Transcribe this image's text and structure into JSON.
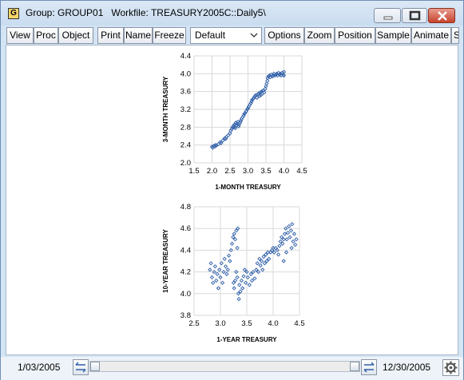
{
  "window": {
    "title": "Group: GROUP01   Workfile: TREASURY2005C::Daily5\\",
    "icon_letter": "G",
    "icons": [
      "group-icon",
      "minimize-icon",
      "maximize-icon",
      "close-icon"
    ]
  },
  "toolbar": {
    "view": "View",
    "proc": "Proc",
    "object": "Object",
    "print": "Print",
    "name": "Name",
    "freeze": "Freeze",
    "display_type": "Default",
    "options": "Options",
    "zoom": "Zoom",
    "position": "Position",
    "sample": "Sample",
    "animate": "Animate",
    "overflow": "S"
  },
  "statusbar": {
    "start_date": "1/03/2005",
    "end_date": "12/30/2005",
    "icons": [
      "swap-arrows-icon",
      "gear-icon"
    ]
  },
  "colors": {
    "marker": "#2f5fa8",
    "grid": "#d9d9d9",
    "window_frame": "#d3e4f5"
  },
  "chart_data": [
    {
      "type": "scatter",
      "title": "",
      "xlabel": "1-MONTH TREASURY",
      "ylabel": "3-MONTH TREASURY",
      "xlim": [
        1.5,
        4.5
      ],
      "ylim": [
        2.0,
        4.4
      ],
      "xticks": [
        "1.5",
        "2.0",
        "2.5",
        "3.0",
        "3.5",
        "4.0",
        "4.5"
      ],
      "yticks": [
        "2.0",
        "2.4",
        "2.8",
        "3.2",
        "3.6",
        "4.0",
        "4.4"
      ],
      "grid": true,
      "marker": "hollow-diamond",
      "points": [
        [
          2.0,
          2.36
        ],
        [
          2.02,
          2.34
        ],
        [
          2.05,
          2.38
        ],
        [
          2.08,
          2.37
        ],
        [
          2.1,
          2.4
        ],
        [
          2.12,
          2.39
        ],
        [
          2.18,
          2.42
        ],
        [
          2.22,
          2.46
        ],
        [
          2.25,
          2.44
        ],
        [
          2.3,
          2.5
        ],
        [
          2.35,
          2.55
        ],
        [
          2.38,
          2.54
        ],
        [
          2.4,
          2.58
        ],
        [
          2.45,
          2.62
        ],
        [
          2.5,
          2.66
        ],
        [
          2.52,
          2.72
        ],
        [
          2.55,
          2.76
        ],
        [
          2.57,
          2.8
        ],
        [
          2.6,
          2.84
        ],
        [
          2.62,
          2.8
        ],
        [
          2.63,
          2.86
        ],
        [
          2.65,
          2.78
        ],
        [
          2.66,
          2.9
        ],
        [
          2.68,
          2.84
        ],
        [
          2.7,
          2.88
        ],
        [
          2.72,
          2.92
        ],
        [
          2.74,
          2.82
        ],
        [
          2.75,
          2.86
        ],
        [
          2.78,
          2.9
        ],
        [
          2.8,
          2.94
        ],
        [
          2.82,
          2.98
        ],
        [
          2.85,
          3.02
        ],
        [
          2.88,
          3.06
        ],
        [
          2.9,
          3.1
        ],
        [
          2.92,
          3.12
        ],
        [
          2.95,
          3.16
        ],
        [
          2.98,
          3.2
        ],
        [
          3.0,
          3.22
        ],
        [
          3.02,
          3.26
        ],
        [
          3.05,
          3.3
        ],
        [
          3.08,
          3.34
        ],
        [
          3.1,
          3.38
        ],
        [
          3.12,
          3.42
        ],
        [
          3.15,
          3.44
        ],
        [
          3.18,
          3.48
        ],
        [
          3.2,
          3.5
        ],
        [
          3.22,
          3.52
        ],
        [
          3.25,
          3.46
        ],
        [
          3.28,
          3.54
        ],
        [
          3.3,
          3.56
        ],
        [
          3.32,
          3.5
        ],
        [
          3.35,
          3.58
        ],
        [
          3.36,
          3.52
        ],
        [
          3.38,
          3.6
        ],
        [
          3.4,
          3.55
        ],
        [
          3.42,
          3.62
        ],
        [
          3.45,
          3.58
        ],
        [
          3.48,
          3.66
        ],
        [
          3.5,
          3.72
        ],
        [
          3.52,
          3.78
        ],
        [
          3.54,
          3.84
        ],
        [
          3.55,
          3.9
        ],
        [
          3.57,
          3.94
        ],
        [
          3.6,
          3.96
        ],
        [
          3.62,
          3.92
        ],
        [
          3.65,
          3.98
        ],
        [
          3.68,
          3.94
        ],
        [
          3.7,
          3.96
        ],
        [
          3.72,
          4.0
        ],
        [
          3.75,
          3.96
        ],
        [
          3.78,
          3.98
        ],
        [
          3.8,
          4.0
        ],
        [
          3.82,
          3.96
        ],
        [
          3.85,
          4.02
        ],
        [
          3.88,
          3.98
        ],
        [
          3.9,
          4.0
        ],
        [
          3.92,
          3.96
        ],
        [
          3.95,
          4.02
        ],
        [
          3.98,
          3.98
        ],
        [
          4.0,
          4.04
        ],
        [
          4.0,
          3.96
        ]
      ]
    },
    {
      "type": "scatter",
      "title": "",
      "xlabel": "1-YEAR TREASURY",
      "ylabel": "10-YEAR TREASURY",
      "xlim": [
        2.5,
        4.5
      ],
      "ylim": [
        3.8,
        4.8
      ],
      "xticks": [
        "2.5",
        "3.0",
        "3.5",
        "4.0",
        "4.5"
      ],
      "yticks": [
        "3.8",
        "4.0",
        "4.2",
        "4.4",
        "4.6",
        "4.8"
      ],
      "grid": true,
      "marker": "hollow-diamond",
      "points": [
        [
          2.8,
          4.22
        ],
        [
          2.82,
          4.28
        ],
        [
          2.84,
          4.15
        ],
        [
          2.86,
          4.1
        ],
        [
          2.88,
          4.2
        ],
        [
          2.9,
          4.25
        ],
        [
          2.92,
          4.12
        ],
        [
          2.94,
          4.18
        ],
        [
          2.96,
          4.05
        ],
        [
          2.98,
          4.22
        ],
        [
          3.0,
          4.15
        ],
        [
          3.02,
          4.28
        ],
        [
          3.04,
          4.1
        ],
        [
          3.06,
          4.2
        ],
        [
          3.08,
          4.32
        ],
        [
          3.1,
          4.25
        ],
        [
          3.12,
          4.18
        ],
        [
          3.14,
          4.22
        ],
        [
          3.16,
          4.35
        ],
        [
          3.18,
          4.3
        ],
        [
          3.2,
          4.4
        ],
        [
          3.22,
          4.46
        ],
        [
          3.24,
          4.52
        ],
        [
          3.26,
          4.55
        ],
        [
          3.28,
          4.5
        ],
        [
          3.3,
          4.58
        ],
        [
          3.32,
          4.42
        ],
        [
          3.33,
          4.6
        ],
        [
          3.3,
          4.2
        ],
        [
          3.28,
          4.12
        ],
        [
          3.26,
          4.05
        ],
        [
          3.25,
          4.1
        ],
        [
          3.32,
          4.15
        ],
        [
          3.34,
          4.0
        ],
        [
          3.35,
          3.95
        ],
        [
          3.36,
          4.08
        ],
        [
          3.38,
          4.02
        ],
        [
          3.4,
          4.12
        ],
        [
          3.42,
          4.05
        ],
        [
          3.44,
          4.16
        ],
        [
          3.46,
          4.22
        ],
        [
          3.48,
          4.1
        ],
        [
          3.5,
          4.2
        ],
        [
          3.52,
          4.15
        ],
        [
          3.55,
          4.08
        ],
        [
          3.58,
          4.18
        ],
        [
          3.6,
          4.12
        ],
        [
          3.62,
          4.2
        ],
        [
          3.65,
          4.14
        ],
        [
          3.68,
          4.22
        ],
        [
          3.7,
          4.28
        ],
        [
          3.72,
          4.2
        ],
        [
          3.74,
          4.32
        ],
        [
          3.76,
          4.26
        ],
        [
          3.78,
          4.3
        ],
        [
          3.8,
          4.22
        ],
        [
          3.82,
          4.34
        ],
        [
          3.84,
          4.28
        ],
        [
          3.86,
          4.36
        ],
        [
          3.88,
          4.3
        ],
        [
          3.9,
          4.38
        ],
        [
          3.92,
          4.32
        ],
        [
          3.95,
          4.38
        ],
        [
          3.98,
          4.4
        ],
        [
          4.0,
          4.42
        ],
        [
          4.02,
          4.38
        ],
        [
          4.05,
          4.42
        ],
        [
          4.08,
          4.4
        ],
        [
          4.1,
          4.36
        ],
        [
          4.12,
          4.44
        ],
        [
          4.14,
          4.48
        ],
        [
          4.16,
          4.52
        ],
        [
          4.18,
          4.46
        ],
        [
          4.2,
          4.5
        ],
        [
          4.22,
          4.55
        ],
        [
          4.24,
          4.6
        ],
        [
          4.26,
          4.5
        ],
        [
          4.28,
          4.56
        ],
        [
          4.3,
          4.62
        ],
        [
          4.32,
          4.52
        ],
        [
          4.34,
          4.58
        ],
        [
          4.36,
          4.64
        ],
        [
          4.38,
          4.48
        ],
        [
          4.4,
          4.55
        ],
        [
          4.42,
          4.45
        ],
        [
          4.44,
          4.5
        ],
        [
          4.2,
          4.3
        ],
        [
          4.25,
          4.38
        ],
        [
          4.35,
          4.42
        ]
      ]
    }
  ]
}
